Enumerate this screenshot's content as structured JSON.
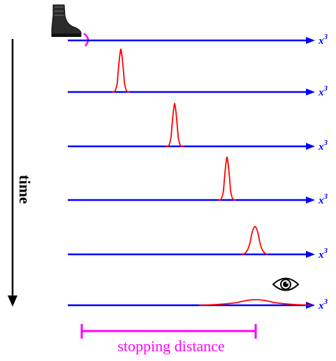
{
  "diagram": {
    "time_label": "time",
    "axis_label_base": "x",
    "axis_label_exponent": "3",
    "stopping_label": "stopping distance",
    "axis_count": 6,
    "colors": {
      "axis": "#0000ff",
      "pulse": "#ff0000",
      "marker": "#ff00ff",
      "time_arrow": "#000000"
    },
    "icons": [
      "boot-icon",
      "eye-icon"
    ]
  }
}
